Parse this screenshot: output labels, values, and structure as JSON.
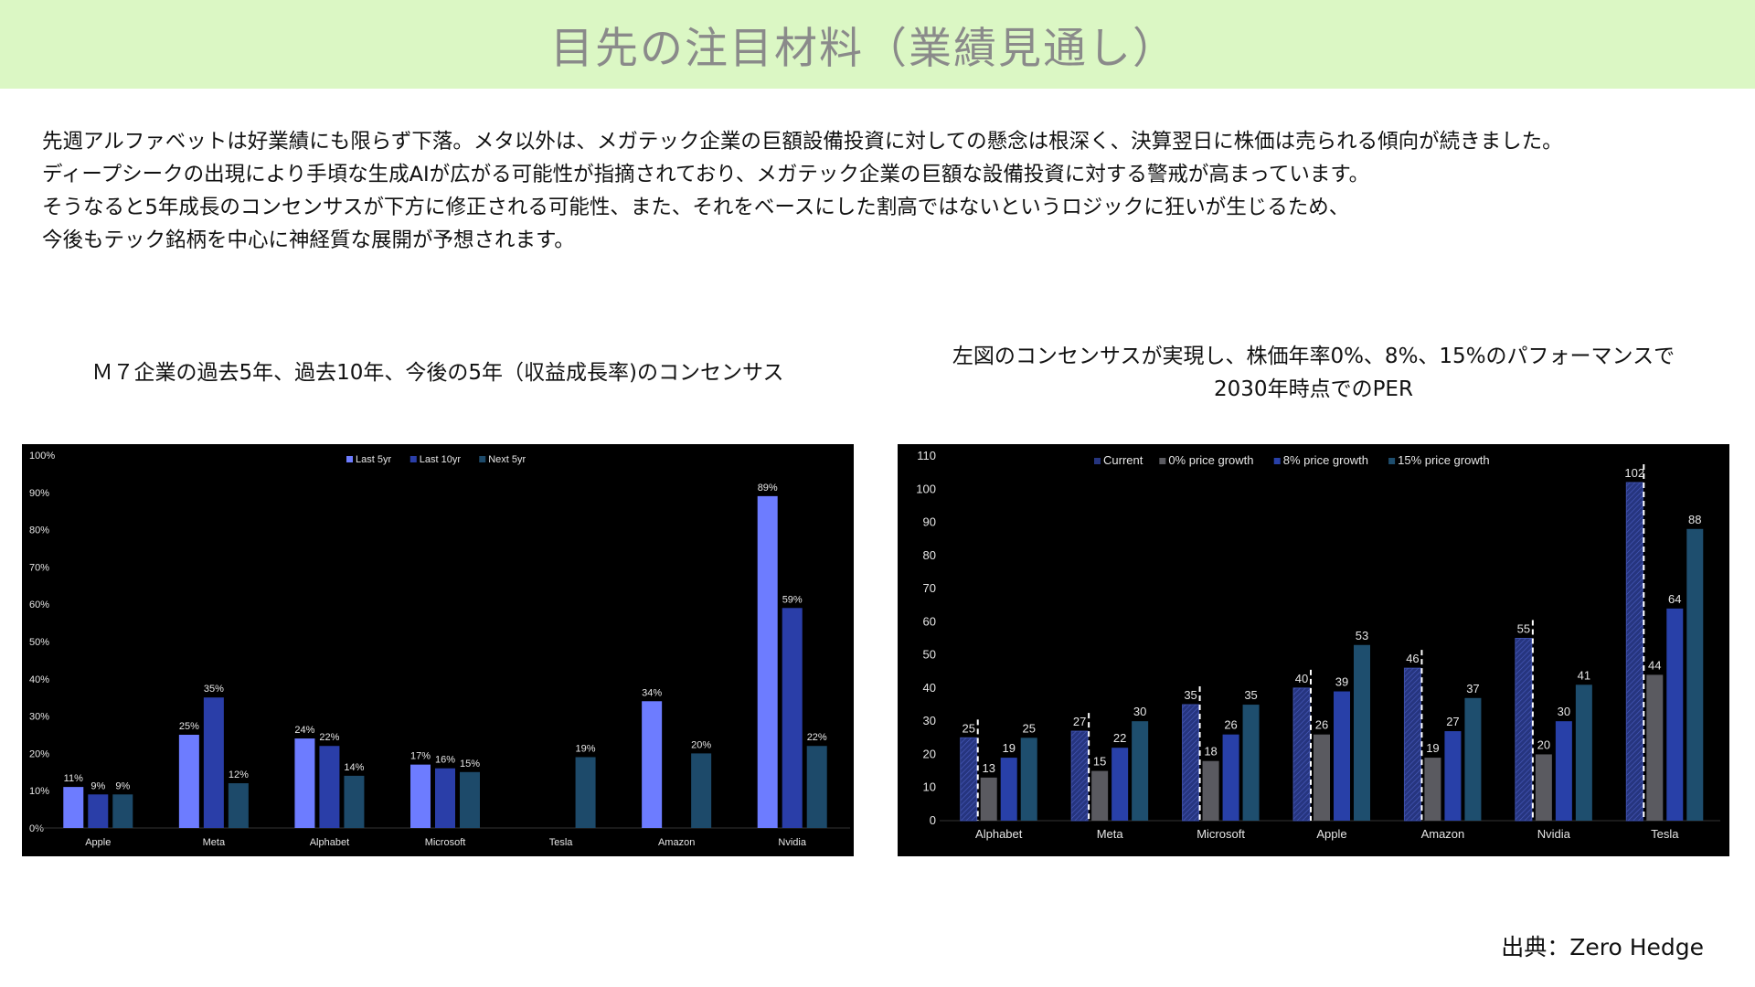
{
  "header": {
    "title": "目先の注目材料（業績見通し）"
  },
  "intro": {
    "lines": [
      "先週アルファベットは好業績にも限らず下落。メタ以外は、メガテック企業の巨額設備投資に対しての懸念は根深く、決算翌日に株価は売られる傾向が続きました。",
      "ディープシークの出現により手頃な生成AIが広がる可能性が指摘されており、メガテック企業の巨額な設備投資に対する警戒が高まっています。",
      "そうなると5年成長のコンセンサスが下方に修正される可能性、また、それをベースにした割高ではないというロジックに狂いが生じるため、",
      "今後もテック銘柄を中心に神経質な展開が予想されます。"
    ]
  },
  "left_title": "Ｍ７企業の過去5年、過去10年、今後の5年（収益成長率)のコンセンサス",
  "right_title_lines": [
    "左図のコンセンサスが実現し、株価年率0%、8%、15%のパフォーマンスで",
    "2030年時点でのPER"
  ],
  "source": "出典：Zero Hedge",
  "chart_data": [
    {
      "type": "bar",
      "categories": [
        "Apple",
        "Meta",
        "Alphabet",
        "Microsoft",
        "Tesla",
        "Amazon",
        "Nvidia"
      ],
      "series": [
        {
          "name": "Last 5yr",
          "color": "#6d7cff",
          "values": [
            11,
            25,
            24,
            17,
            null,
            34,
            89
          ]
        },
        {
          "name": "Last 10yr",
          "color": "#2a3ea8",
          "values": [
            9,
            35,
            22,
            16,
            null,
            null,
            59
          ]
        },
        {
          "name": "Next 5yr",
          "color": "#1d4a6a",
          "values": [
            9,
            12,
            14,
            15,
            19,
            20,
            22
          ]
        }
      ],
      "ylim": [
        0,
        100
      ],
      "yticks": [
        "0%",
        "10%",
        "20%",
        "30%",
        "40%",
        "50%",
        "60%",
        "70%",
        "80%",
        "90%",
        "100%"
      ],
      "value_suffix": "%",
      "grid": false,
      "legend": "top-center"
    },
    {
      "type": "bar",
      "categories": [
        "Alphabet",
        "Meta",
        "Microsoft",
        "Apple",
        "Amazon",
        "Nvidia",
        "Tesla"
      ],
      "series": [
        {
          "name": "Current",
          "color": "#26357f",
          "values": [
            25,
            27,
            35,
            40,
            46,
            55,
            102
          ]
        },
        {
          "name": "0% price growth",
          "color": "#5a5a60",
          "values": [
            13,
            15,
            18,
            26,
            19,
            20,
            44
          ]
        },
        {
          "name": "8% price growth",
          "color": "#2840a8",
          "values": [
            19,
            22,
            26,
            39,
            27,
            30,
            64
          ]
        },
        {
          "name": "15% price growth",
          "color": "#1e4e6e",
          "values": [
            25,
            30,
            35,
            53,
            37,
            41,
            88
          ]
        }
      ],
      "ylim": [
        0,
        110
      ],
      "yticks": [
        "0",
        "10",
        "20",
        "30",
        "40",
        "50",
        "60",
        "70",
        "80",
        "90",
        "100",
        "110"
      ],
      "value_suffix": "",
      "grid": false,
      "legend": "top-center"
    }
  ]
}
